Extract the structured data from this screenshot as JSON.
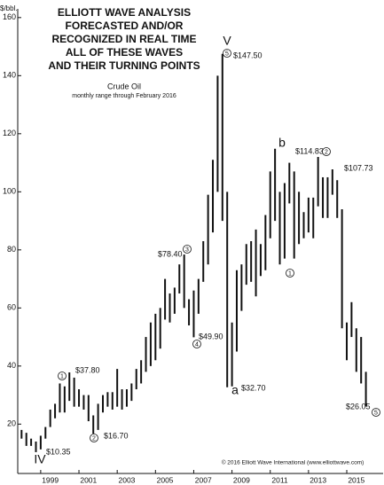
{
  "chart_data": {
    "type": "range",
    "title": [
      "ELLIOTT WAVE ANALYSIS",
      "FORECASTED AND/OR",
      "RECOGNIZED IN REAL TIME",
      "ALL OF THESE WAVES",
      "AND THEIR TURNING POINTS"
    ],
    "subtitle": "Crude Oil",
    "note": "monthly range through February 2016",
    "y_label": "$/bbl.",
    "credit": "© 2016 Elliott Wave International (www.elliottwave.com)",
    "color": "#111111",
    "x": [
      1998,
      1998.25,
      1998.5,
      1998.75,
      1999,
      1999.25,
      1999.5,
      1999.75,
      2000,
      2000.25,
      2000.5,
      2000.75,
      2001,
      2001.25,
      2001.5,
      2001.75,
      2002,
      2002.25,
      2002.5,
      2002.75,
      2003,
      2003.25,
      2003.5,
      2003.75,
      2004,
      2004.25,
      2004.5,
      2004.75,
      2005,
      2005.25,
      2005.5,
      2005.75,
      2006,
      2006.25,
      2006.5,
      2006.75,
      2007,
      2007.25,
      2007.5,
      2007.75,
      2008,
      2008.25,
      2008.5,
      2008.75,
      2009,
      2009.25,
      2009.5,
      2009.75,
      2010,
      2010.25,
      2010.5,
      2010.75,
      2011,
      2011.25,
      2011.5,
      2011.75,
      2012,
      2012.25,
      2012.5,
      2012.75,
      2013,
      2013.25,
      2013.5,
      2013.75,
      2014,
      2014.25,
      2014.5,
      2014.75,
      2015,
      2015.25,
      2015.5,
      2015.75,
      2016
    ],
    "high": [
      18,
      17,
      15,
      14,
      16,
      19,
      25,
      27,
      34,
      33,
      37.8,
      36,
      32,
      30,
      30,
      23,
      27,
      30,
      31,
      31,
      39,
      32,
      32,
      34,
      39,
      42,
      50,
      55,
      58,
      60,
      70,
      65,
      67,
      75,
      78.4,
      63,
      66,
      70,
      83,
      99,
      111,
      140,
      147.5,
      100,
      55,
      73,
      75,
      82,
      83,
      87,
      82,
      92,
      107,
      114.83,
      100,
      103,
      110,
      107,
      100,
      93,
      98,
      98,
      112,
      105,
      105,
      107.73,
      104,
      94,
      55,
      62,
      53,
      50,
      38
    ],
    "low": [
      15,
      12.5,
      12.5,
      10.35,
      11.3,
      15,
      19,
      22,
      24,
      24,
      28,
      26,
      26,
      25,
      21,
      16.7,
      18,
      24,
      26,
      25,
      26,
      25,
      26,
      28,
      32,
      34,
      38,
      40,
      42,
      46,
      56,
      55,
      58,
      65,
      60,
      54,
      49.9,
      58,
      69,
      75,
      86,
      100,
      90,
      32.7,
      33,
      45,
      59,
      68,
      69,
      64,
      71,
      73,
      84,
      90,
      75,
      77,
      96,
      77,
      82,
      84,
      86,
      84,
      95,
      91,
      91,
      99,
      91,
      53,
      42,
      50,
      38,
      34,
      26.05
    ],
    "xlim": [
      1997.8,
      2016.9
    ],
    "xticks": [
      1999,
      2001,
      2003,
      2005,
      2007,
      2009,
      2011,
      2013,
      2015
    ],
    "ylim": [
      3,
      163
    ],
    "yticks": [
      20,
      40,
      60,
      80,
      100,
      120,
      140,
      160
    ],
    "price_labels": [
      "$10.35",
      "$37.80",
      "$16.70",
      "$78.40",
      "$49.90",
      "$147.50",
      "$32.70",
      "$114.83",
      "$107.73",
      "$26.05"
    ],
    "wave_labels": [
      "IV",
      "V",
      "a",
      "b"
    ],
    "circled_labels": [
      "1",
      "2",
      "3",
      "4",
      "5",
      "1",
      "2",
      "5"
    ]
  }
}
